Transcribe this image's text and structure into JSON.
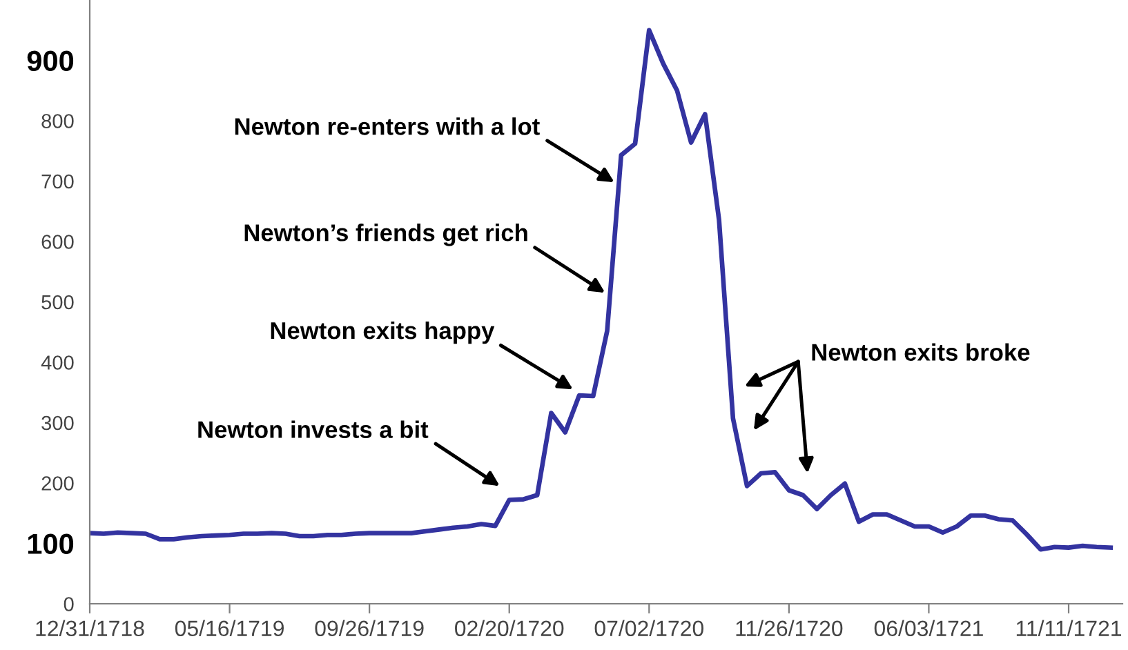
{
  "chart_data": {
    "type": "line",
    "categories": [
      "12/31/1718",
      null,
      null,
      null,
      null,
      null,
      null,
      null,
      null,
      null,
      "05/16/1719",
      null,
      null,
      null,
      null,
      null,
      null,
      null,
      null,
      null,
      "09/26/1719",
      null,
      null,
      null,
      null,
      null,
      null,
      null,
      null,
      null,
      "02/20/1720",
      null,
      null,
      null,
      null,
      null,
      null,
      null,
      null,
      null,
      "07/02/1720",
      null,
      null,
      null,
      null,
      null,
      null,
      null,
      null,
      null,
      "11/26/1720",
      null,
      null,
      null,
      null,
      null,
      null,
      null,
      null,
      null,
      "06/03/1721",
      null,
      null,
      null,
      null,
      null,
      null,
      null,
      null,
      null,
      "11/11/1721",
      null,
      null,
      null
    ],
    "series": [
      {
        "color": "#3333a0",
        "values": [
          117,
          116,
          118,
          117,
          116,
          107,
          107,
          110,
          112,
          113,
          114,
          116,
          116,
          117,
          116,
          112,
          112,
          114,
          114,
          116,
          117,
          117,
          117,
          117,
          120,
          123,
          126,
          128,
          132,
          129,
          172,
          173,
          180,
          316,
          284,
          345,
          344,
          452,
          743,
          762,
          950,
          895,
          850,
          764,
          811,
          636,
          307,
          195,
          216,
          218,
          188,
          180,
          157,
          180,
          199,
          136,
          148,
          148,
          138,
          128,
          128,
          118,
          128,
          146,
          146,
          140,
          138,
          115,
          90,
          94,
          93,
          96,
          94,
          93
        ]
      }
    ],
    "ylim": [
      0,
      1000
    ],
    "yticks": [
      0,
      100,
      200,
      300,
      400,
      500,
      600,
      700,
      800,
      900
    ],
    "annotations": [
      "Newton invests a bit",
      "Newton exits happy",
      "Newton’s friends get rich",
      "Newton re-enters with a lot",
      "Newton exits broke"
    ],
    "grid": false,
    "legend": false,
    "marker": "none",
    "line_style": "solid"
  }
}
